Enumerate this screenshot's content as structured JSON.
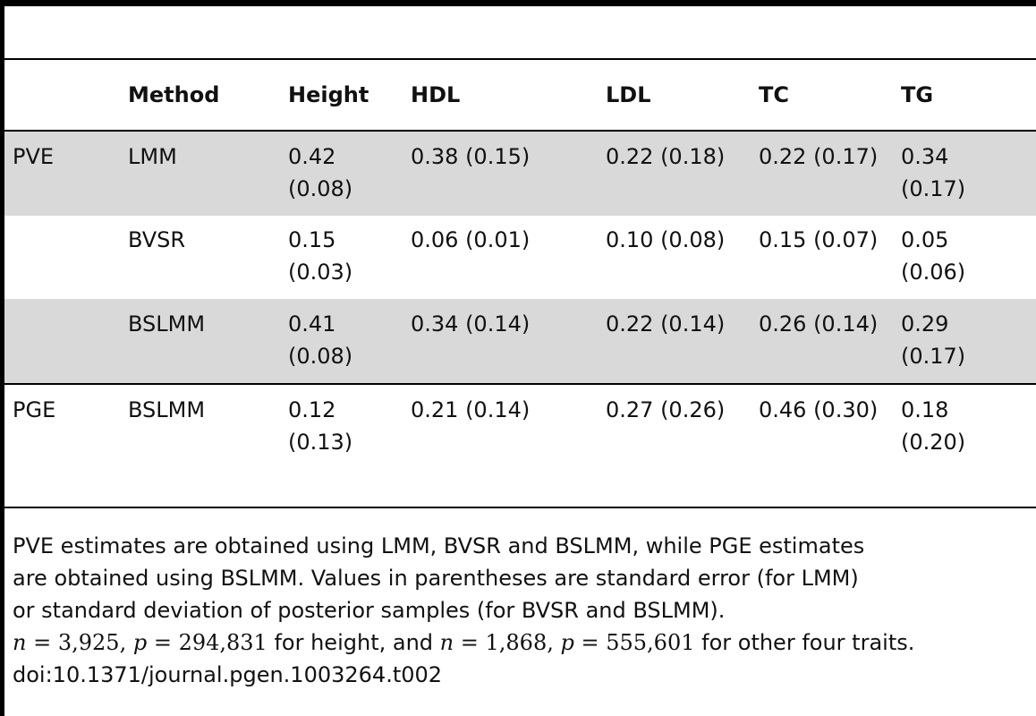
{
  "table": {
    "headers": [
      "",
      "Method",
      "Height",
      "HDL",
      "LDL",
      "TC",
      "TG"
    ],
    "rows": [
      {
        "label": "PVE",
        "method": "LMM",
        "cells": [
          [
            "0.42",
            "(0.08)"
          ],
          [
            "0.38 (0.15)"
          ],
          [
            "0.22 (0.18)"
          ],
          [
            "0.22 (0.17)"
          ],
          [
            "0.34",
            "(0.17)"
          ]
        ]
      },
      {
        "label": "",
        "method": "BVSR",
        "cells": [
          [
            "0.15",
            "(0.03)"
          ],
          [
            "0.06 (0.01)"
          ],
          [
            "0.10 (0.08)"
          ],
          [
            "0.15 (0.07)"
          ],
          [
            "0.05",
            "(0.06)"
          ]
        ]
      },
      {
        "label": "",
        "method": "BSLMM",
        "cells": [
          [
            "0.41",
            "(0.08)"
          ],
          [
            "0.34 (0.14)"
          ],
          [
            "0.22 (0.14)"
          ],
          [
            "0.26 (0.14)"
          ],
          [
            "0.29",
            "(0.17)"
          ]
        ]
      },
      {
        "label": "PGE",
        "method": "BSLMM",
        "cells": [
          [
            "0.12",
            "(0.13)"
          ],
          [
            "0.21 (0.14)"
          ],
          [
            "0.27 (0.26)"
          ],
          [
            "0.46 (0.30)"
          ],
          [
            "0.18",
            "(0.20)"
          ]
        ]
      }
    ]
  },
  "footer": {
    "line1": "PVE estimates are obtained using LMM, BVSR and BSLMM, while PGE estimates",
    "line2": "are obtained using BSLMM. Values in parentheses are standard error (for LMM)",
    "line3": "or standard deviation of posterior samples (for BVSR and BSLMM).",
    "n1": "3,925",
    "p1": "294,831",
    "text_height": "for height, and",
    "n2": "1,868",
    "p2": "555,601",
    "text_other": "for other four traits.",
    "doi": "doi:10.1371/journal.pgen.1003264.t002"
  }
}
